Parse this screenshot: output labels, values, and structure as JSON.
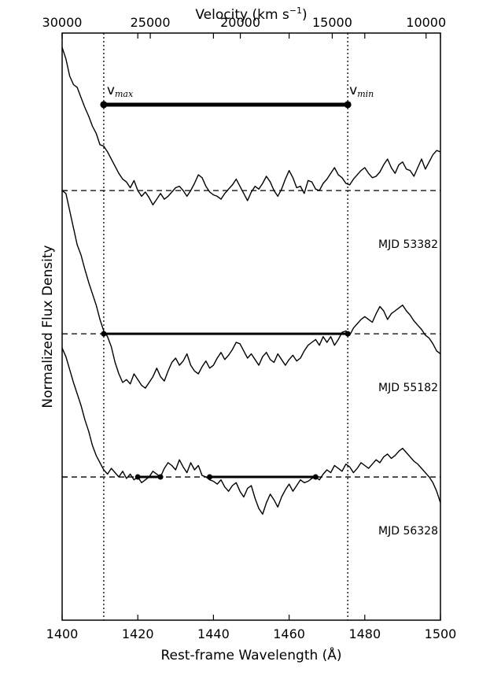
{
  "chart_data": {
    "type": "line",
    "xlabel": "Rest-frame Wavelength (Å)",
    "ylabel": "Normalized Flux Density",
    "top_axis_label": "Velocity (km s",
    "top_axis_label_sup": "−1",
    "top_axis_label_end": ")",
    "xlim": [
      1400,
      1500
    ],
    "x_ticks": [
      1400,
      1420,
      1440,
      1460,
      1480,
      1500
    ],
    "top_ticks": [
      30000,
      25000,
      20000,
      15000,
      10000
    ],
    "top_tick_wavelengths": [
      1400.0,
      1423.3,
      1447.1,
      1471.4,
      1496.2
    ],
    "vertical_lines": [
      1411,
      1475.5
    ],
    "annotations": {
      "vmax_main": "v",
      "vmax_sub": "max",
      "vmin_main": "v",
      "vmin_sub": "min",
      "top_bar": [
        1411,
        1475.5
      ]
    },
    "series": [
      {
        "name": "MJD 53382",
        "baseline": 3.0,
        "x": [
          1400,
          1401,
          1402,
          1403,
          1404,
          1405,
          1406,
          1407,
          1408,
          1409,
          1410,
          1411,
          1412,
          1413,
          1414,
          1415,
          1416,
          1417,
          1418,
          1419,
          1420,
          1421,
          1422,
          1423,
          1424,
          1425,
          1426,
          1427,
          1428,
          1429,
          1430,
          1431,
          1432,
          1433,
          1434,
          1435,
          1436,
          1437,
          1438,
          1439,
          1440,
          1441,
          1442,
          1443,
          1444,
          1445,
          1446,
          1447,
          1448,
          1449,
          1450,
          1451,
          1452,
          1453,
          1454,
          1455,
          1456,
          1457,
          1458,
          1459,
          1460,
          1461,
          1462,
          1463,
          1464,
          1465,
          1466,
          1467,
          1468,
          1469,
          1470,
          1471,
          1472,
          1473,
          1474,
          1475,
          1476,
          1477,
          1478,
          1479,
          1480,
          1481,
          1482,
          1483,
          1484,
          1485,
          1486,
          1487,
          1488,
          1489,
          1490,
          1491,
          1492,
          1493,
          1494,
          1495,
          1496,
          1497,
          1498,
          1499,
          1500
        ],
        "y": [
          4.0,
          3.92,
          3.8,
          3.74,
          3.72,
          3.65,
          3.58,
          3.52,
          3.45,
          3.4,
          3.32,
          3.31,
          3.27,
          3.22,
          3.17,
          3.12,
          3.08,
          3.06,
          3.02,
          3.07,
          3.0,
          2.96,
          2.99,
          2.95,
          2.9,
          2.94,
          2.98,
          2.94,
          2.96,
          2.99,
          3.02,
          3.03,
          3.0,
          2.96,
          3.0,
          3.05,
          3.11,
          3.09,
          3.03,
          2.99,
          2.97,
          2.96,
          2.94,
          2.98,
          3.01,
          3.04,
          3.08,
          3.03,
          2.98,
          2.93,
          2.99,
          3.03,
          3.01,
          3.05,
          3.1,
          3.06,
          3.0,
          2.96,
          3.01,
          3.08,
          3.14,
          3.09,
          3.02,
          3.03,
          2.98,
          3.07,
          3.06,
          3.01,
          3.0,
          3.05,
          3.08,
          3.12,
          3.16,
          3.11,
          3.09,
          3.05,
          3.04,
          3.08,
          3.11,
          3.14,
          3.16,
          3.12,
          3.09,
          3.1,
          3.13,
          3.18,
          3.22,
          3.16,
          3.12,
          3.18,
          3.2,
          3.15,
          3.14,
          3.1,
          3.16,
          3.22,
          3.15,
          3.2,
          3.25,
          3.28,
          3.27
        ]
      },
      {
        "name": "MJD 55182",
        "baseline": 2.0,
        "x": [
          1400,
          1401,
          1402,
          1403,
          1404,
          1405,
          1406,
          1407,
          1408,
          1409,
          1410,
          1411,
          1412,
          1413,
          1414,
          1415,
          1416,
          1417,
          1418,
          1419,
          1420,
          1421,
          1422,
          1423,
          1424,
          1425,
          1426,
          1427,
          1428,
          1429,
          1430,
          1431,
          1432,
          1433,
          1434,
          1435,
          1436,
          1437,
          1438,
          1439,
          1440,
          1441,
          1442,
          1443,
          1444,
          1445,
          1446,
          1447,
          1448,
          1449,
          1450,
          1451,
          1452,
          1453,
          1454,
          1455,
          1456,
          1457,
          1458,
          1459,
          1460,
          1461,
          1462,
          1463,
          1464,
          1465,
          1466,
          1467,
          1468,
          1469,
          1470,
          1471,
          1472,
          1473,
          1474,
          1475,
          1476,
          1477,
          1478,
          1479,
          1480,
          1481,
          1482,
          1483,
          1484,
          1485,
          1486,
          1487,
          1488,
          1489,
          1490,
          1491,
          1492,
          1493,
          1494,
          1495,
          1496,
          1497,
          1498,
          1499,
          1500
        ],
        "y": [
          3.0,
          2.98,
          2.86,
          2.74,
          2.62,
          2.55,
          2.45,
          2.36,
          2.28,
          2.2,
          2.1,
          2.02,
          1.98,
          1.91,
          1.8,
          1.72,
          1.66,
          1.68,
          1.65,
          1.72,
          1.68,
          1.64,
          1.62,
          1.66,
          1.7,
          1.76,
          1.7,
          1.67,
          1.74,
          1.8,
          1.83,
          1.78,
          1.81,
          1.86,
          1.78,
          1.74,
          1.72,
          1.77,
          1.81,
          1.76,
          1.78,
          1.83,
          1.87,
          1.82,
          1.85,
          1.89,
          1.94,
          1.93,
          1.88,
          1.83,
          1.86,
          1.82,
          1.78,
          1.84,
          1.87,
          1.82,
          1.8,
          1.86,
          1.82,
          1.78,
          1.82,
          1.85,
          1.81,
          1.83,
          1.88,
          1.92,
          1.94,
          1.96,
          1.92,
          1.98,
          1.94,
          1.98,
          1.92,
          1.96,
          2.01,
          2.02,
          1.99,
          2.04,
          2.07,
          2.1,
          2.12,
          2.1,
          2.08,
          2.14,
          2.19,
          2.16,
          2.1,
          2.14,
          2.16,
          2.18,
          2.2,
          2.16,
          2.13,
          2.09,
          2.06,
          2.03,
          1.99,
          1.97,
          1.93,
          1.88,
          1.86
        ]
      },
      {
        "name": "MJD 56328",
        "baseline": 1.0,
        "x": [
          1400,
          1401,
          1402,
          1403,
          1404,
          1405,
          1406,
          1407,
          1408,
          1409,
          1410,
          1411,
          1412,
          1413,
          1414,
          1415,
          1416,
          1417,
          1418,
          1419,
          1420,
          1421,
          1422,
          1423,
          1424,
          1425,
          1426,
          1427,
          1428,
          1429,
          1430,
          1431,
          1432,
          1433,
          1434,
          1435,
          1436,
          1437,
          1438,
          1439,
          1440,
          1441,
          1442,
          1443,
          1444,
          1445,
          1446,
          1447,
          1448,
          1449,
          1450,
          1451,
          1452,
          1453,
          1454,
          1455,
          1456,
          1457,
          1458,
          1459,
          1460,
          1461,
          1462,
          1463,
          1464,
          1465,
          1466,
          1467,
          1468,
          1469,
          1470,
          1471,
          1472,
          1473,
          1474,
          1475,
          1476,
          1477,
          1478,
          1479,
          1480,
          1481,
          1482,
          1483,
          1484,
          1485,
          1486,
          1487,
          1488,
          1489,
          1490,
          1491,
          1492,
          1493,
          1494,
          1495,
          1496,
          1497,
          1498,
          1499,
          1500
        ],
        "y": [
          1.9,
          1.84,
          1.75,
          1.66,
          1.58,
          1.5,
          1.4,
          1.32,
          1.22,
          1.15,
          1.1,
          1.05,
          1.02,
          1.06,
          1.03,
          1.0,
          1.04,
          0.99,
          1.02,
          0.98,
          1.0,
          0.96,
          0.98,
          1.0,
          1.04,
          1.02,
          1.0,
          1.06,
          1.1,
          1.08,
          1.05,
          1.12,
          1.07,
          1.03,
          1.1,
          1.05,
          1.08,
          1.01,
          1.0,
          0.98,
          0.97,
          0.95,
          0.98,
          0.93,
          0.9,
          0.94,
          0.96,
          0.9,
          0.86,
          0.92,
          0.94,
          0.85,
          0.78,
          0.74,
          0.82,
          0.88,
          0.84,
          0.79,
          0.86,
          0.91,
          0.95,
          0.9,
          0.94,
          0.98,
          0.96,
          0.97,
          0.99,
          1.0,
          0.98,
          1.02,
          1.05,
          1.03,
          1.08,
          1.06,
          1.04,
          1.09,
          1.07,
          1.03,
          1.06,
          1.1,
          1.08,
          1.06,
          1.09,
          1.12,
          1.1,
          1.14,
          1.16,
          1.13,
          1.15,
          1.18,
          1.2,
          1.17,
          1.14,
          1.11,
          1.09,
          1.06,
          1.03,
          1.0,
          0.96,
          0.9,
          0.82
        ]
      }
    ],
    "velocity_bars": [
      {
        "baseline": 2.0,
        "x0": 1411,
        "x1": 1475.5
      },
      {
        "baseline": 1.0,
        "x0": 1420,
        "x1": 1426
      },
      {
        "baseline": 1.0,
        "x0": 1439,
        "x1": 1467
      }
    ],
    "grid": false,
    "legend": "none"
  }
}
